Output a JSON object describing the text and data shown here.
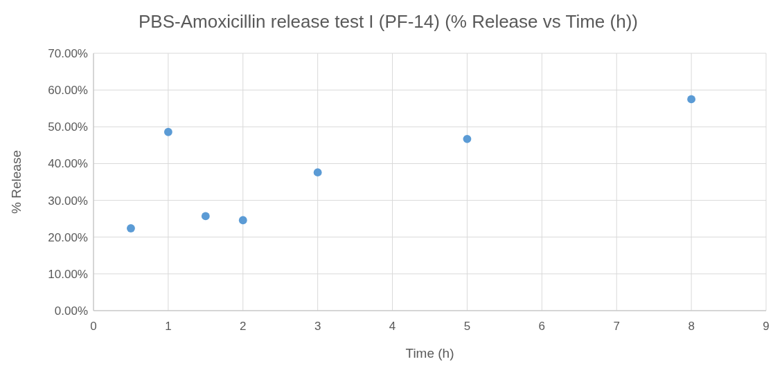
{
  "chart_data": {
    "type": "scatter",
    "title": "PBS-Amoxicillin release test I (PF-14) (% Release vs Time (h))",
    "xlabel": "Time (h)",
    "ylabel": "% Release",
    "x": [
      0.5,
      1,
      1.5,
      2,
      3,
      5,
      8
    ],
    "series": [
      {
        "color": "#5b9bd5",
        "values": [
          22.4,
          48.6,
          25.7,
          24.6,
          37.6,
          46.7,
          57.5
        ]
      }
    ],
    "xlim": [
      0,
      9
    ],
    "xticks": [
      0,
      1,
      2,
      3,
      4,
      5,
      6,
      7,
      8,
      9
    ],
    "ylim": [
      0,
      70
    ],
    "yticks": [
      {
        "value": 0,
        "label": "0.00%"
      },
      {
        "value": 10,
        "label": "10.00%"
      },
      {
        "value": 20,
        "label": "20.00%"
      },
      {
        "value": 30,
        "label": "30.00%"
      },
      {
        "value": 40,
        "label": "40.00%"
      },
      {
        "value": 50,
        "label": "50.00%"
      },
      {
        "value": 60,
        "label": "60.00%"
      },
      {
        "value": 70,
        "label": "70.00%"
      }
    ],
    "grid": true,
    "marker": "circle"
  }
}
